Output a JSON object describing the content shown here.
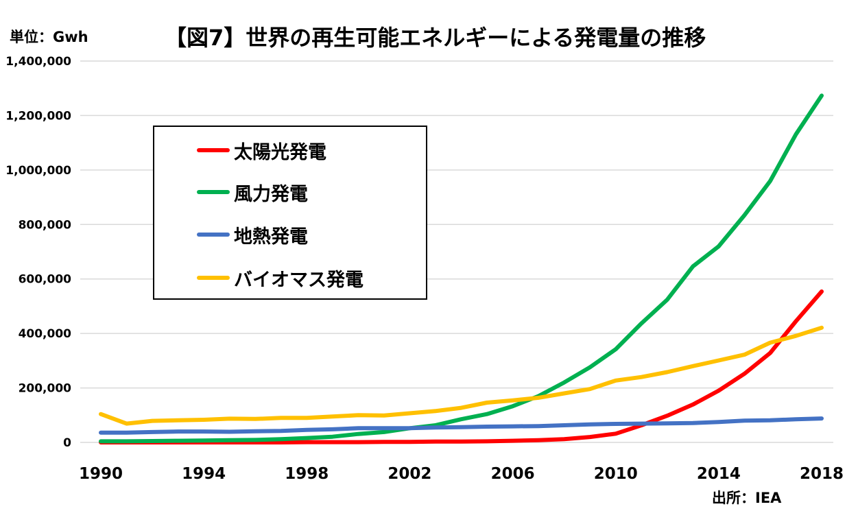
{
  "title": "【図7】世界の再生可能エネルギーによる発電量の推移",
  "unit_label": "単位：Gwh",
  "source_label": "出所：IEA",
  "chart_data": {
    "type": "line",
    "x": [
      1990,
      1991,
      1992,
      1993,
      1994,
      1995,
      1996,
      1997,
      1998,
      1999,
      2000,
      2001,
      2002,
      2003,
      2004,
      2005,
      2006,
      2007,
      2008,
      2009,
      2010,
      2011,
      2012,
      2013,
      2014,
      2015,
      2016,
      2017,
      2018
    ],
    "xticks": [
      1990,
      1994,
      1998,
      2002,
      2006,
      2010,
      2014,
      2018
    ],
    "xtick_labels": [
      "1990",
      "1994",
      "1998",
      "2002",
      "2006",
      "2010",
      "2014",
      "2018"
    ],
    "ylim": [
      0,
      1400000
    ],
    "yticks": [
      0,
      200000,
      400000,
      600000,
      800000,
      1000000,
      1200000,
      1400000
    ],
    "ytick_labels": [
      "0",
      "200,000",
      "400,000",
      "600,000",
      "800,000",
      "1,000,000",
      "1,200,000",
      "1,400,000"
    ],
    "grid": true,
    "legend_position": "top-left",
    "series": [
      {
        "name": "太陽光発電",
        "color": "#ff0000",
        "values": [
          0,
          0,
          0,
          0,
          0,
          0,
          0,
          0,
          1000,
          1000,
          1000,
          2000,
          2000,
          3000,
          3000,
          4000,
          6000,
          8000,
          12000,
          20000,
          32000,
          63000,
          98000,
          139000,
          190000,
          252000,
          328000,
          445000,
          554000
        ]
      },
      {
        "name": "風力発電",
        "color": "#00b050",
        "values": [
          4000,
          4000,
          5000,
          6000,
          7000,
          8000,
          9000,
          12000,
          16000,
          21000,
          31000,
          38000,
          52000,
          63000,
          85000,
          104000,
          133000,
          170000,
          220000,
          276000,
          342000,
          437000,
          524000,
          646000,
          720000,
          834000,
          959000,
          1131000,
          1273000
        ]
      },
      {
        "name": "地熱発電",
        "color": "#4472c4",
        "values": [
          36000,
          36000,
          38000,
          40000,
          40000,
          39000,
          41000,
          42000,
          46000,
          48000,
          52000,
          52000,
          52000,
          55000,
          56000,
          58000,
          59000,
          60000,
          63000,
          66000,
          68000,
          69000,
          70000,
          71000,
          75000,
          80000,
          81000,
          85000,
          88000
        ]
      },
      {
        "name": "バイオマス発電",
        "color": "#ffc000",
        "values": [
          104000,
          69000,
          79000,
          81000,
          83000,
          87000,
          86000,
          90000,
          90000,
          95000,
          100000,
          99000,
          107000,
          115000,
          127000,
          146000,
          154000,
          164000,
          180000,
          196000,
          227000,
          240000,
          258000,
          280000,
          301000,
          322000,
          366000,
          391000,
          421000
        ]
      }
    ]
  }
}
